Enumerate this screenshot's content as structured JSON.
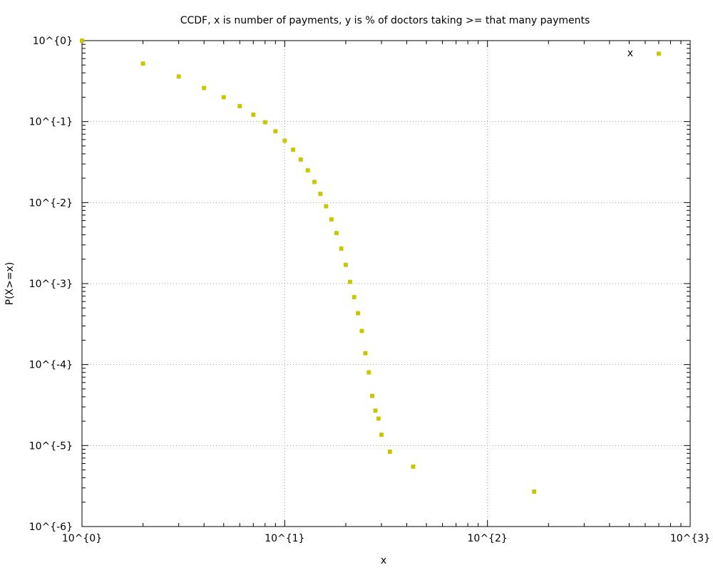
{
  "chart_data": {
    "type": "scatter",
    "title": "CCDF, x is number of payments, y is % of doctors taking >= that many payments",
    "xlabel": "x",
    "ylabel": "P(X>=x)",
    "x_scale": "log",
    "y_scale": "log",
    "xlim": [
      1,
      1000
    ],
    "ylim": [
      1e-06,
      1
    ],
    "x_ticks": [
      {
        "value": 1,
        "label": "10^{0}"
      },
      {
        "value": 10,
        "label": "10^{1}"
      },
      {
        "value": 100,
        "label": "10^{2}"
      },
      {
        "value": 1000,
        "label": "10^{3}"
      }
    ],
    "y_ticks": [
      {
        "value": 1,
        "label": "10^{0}"
      },
      {
        "value": 0.1,
        "label": "10^{-1}"
      },
      {
        "value": 0.01,
        "label": "10^{-2}"
      },
      {
        "value": 0.001,
        "label": "10^{-3}"
      },
      {
        "value": 0.0001,
        "label": "10^{-4}"
      },
      {
        "value": 1e-05,
        "label": "10^{-5}"
      },
      {
        "value": 1e-06,
        "label": "10^{-6}"
      }
    ],
    "grid": true,
    "legend": {
      "placement": "top-right",
      "label": "x"
    },
    "series": [
      {
        "name": "x",
        "color": "#c8c800",
        "points": [
          [
            1,
            1.0
          ],
          [
            2,
            0.52
          ],
          [
            3,
            0.36
          ],
          [
            4,
            0.26
          ],
          [
            5,
            0.2
          ],
          [
            6,
            0.155
          ],
          [
            7,
            0.122
          ],
          [
            8,
            0.098
          ],
          [
            9,
            0.076
          ],
          [
            10,
            0.058
          ],
          [
            11,
            0.045
          ],
          [
            12,
            0.034
          ],
          [
            13,
            0.025
          ],
          [
            14,
            0.018
          ],
          [
            15,
            0.0128
          ],
          [
            16,
            0.009
          ],
          [
            17,
            0.0062
          ],
          [
            18,
            0.0042
          ],
          [
            19,
            0.0027
          ],
          [
            20,
            0.0017
          ],
          [
            21,
            0.00105
          ],
          [
            22,
            0.00068
          ],
          [
            23,
            0.00043
          ],
          [
            24,
            0.00026
          ],
          [
            25,
            0.000138
          ],
          [
            26,
            8e-05
          ],
          [
            27,
            4.1e-05
          ],
          [
            28,
            2.7e-05
          ],
          [
            29,
            2.15e-05
          ],
          [
            30,
            1.36e-05
          ],
          [
            33,
            8.4e-06
          ],
          [
            43,
            5.5e-06
          ],
          [
            170,
            2.7e-06
          ],
          [
            700,
            0.69
          ]
        ]
      }
    ]
  }
}
